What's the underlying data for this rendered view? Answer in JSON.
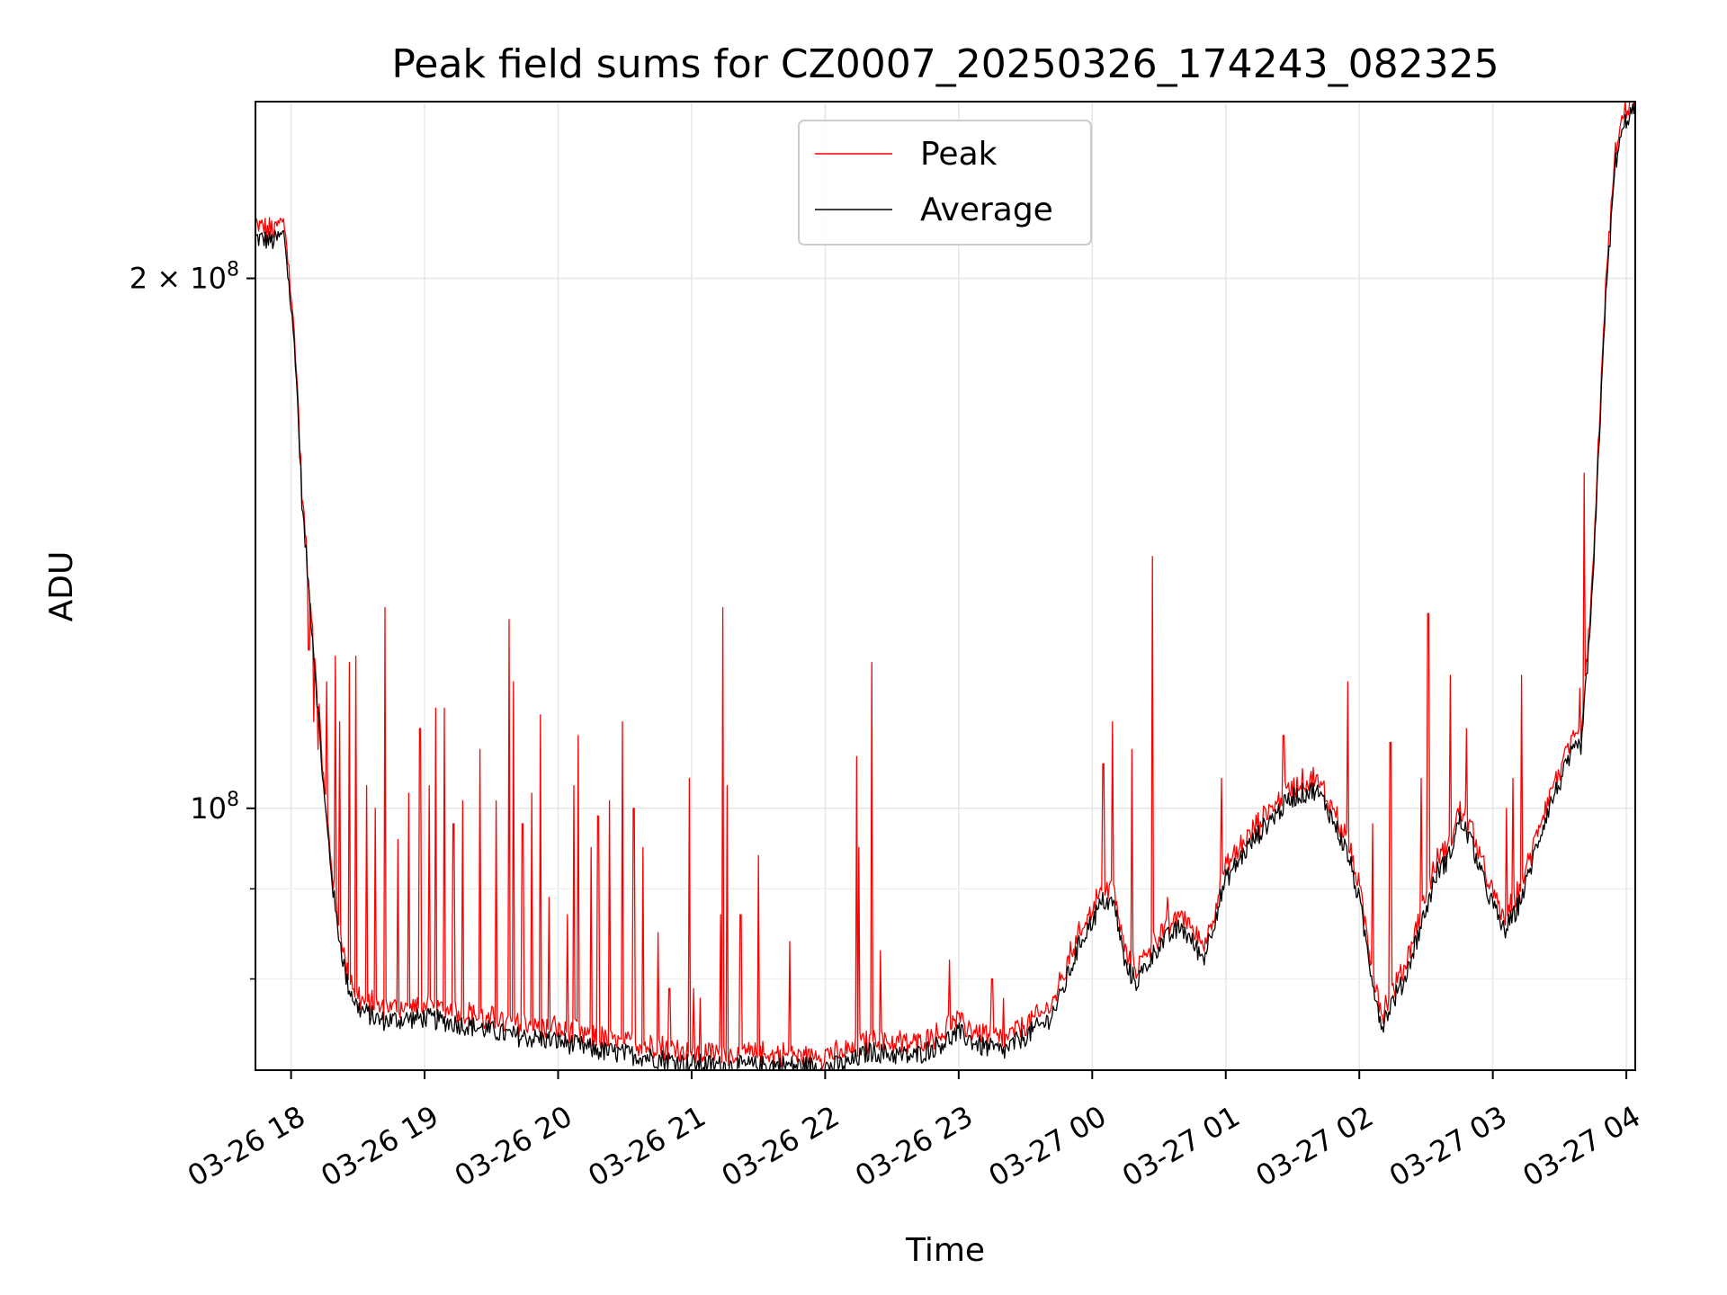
{
  "chart_data": {
    "type": "line",
    "title": "Peak field sums for CZ0007_20250326_174243_082325",
    "xlabel": "Time",
    "ylabel": "ADU",
    "yscale": "log",
    "xlim": [
      "2025-03-26 17:44",
      "2025-03-27 04:04"
    ],
    "ylim": [
      71000000,
      252000000
    ],
    "xticks": [
      {
        "t": "2025-03-26 18:00",
        "label": "03-26 18"
      },
      {
        "t": "2025-03-26 19:00",
        "label": "03-26 19"
      },
      {
        "t": "2025-03-26 20:00",
        "label": "03-26 20"
      },
      {
        "t": "2025-03-26 21:00",
        "label": "03-26 21"
      },
      {
        "t": "2025-03-26 22:00",
        "label": "03-26 22"
      },
      {
        "t": "2025-03-26 23:00",
        "label": "03-26 23"
      },
      {
        "t": "2025-03-27 00:00",
        "label": "03-27 00"
      },
      {
        "t": "2025-03-27 01:00",
        "label": "03-27 01"
      },
      {
        "t": "2025-03-27 02:00",
        "label": "03-27 02"
      },
      {
        "t": "2025-03-27 03:00",
        "label": "03-27 03"
      },
      {
        "t": "2025-03-27 04:00",
        "label": "03-27 04"
      }
    ],
    "yticks_major": [
      {
        "value": 100000000,
        "base": "10",
        "exp": "8",
        "mult": ""
      },
      {
        "value": 200000000,
        "base": "10",
        "exp": "8",
        "mult": "2 × "
      }
    ],
    "yticks_minor": [
      80000000,
      90000000
    ],
    "grid": true,
    "legend_position": "top-center",
    "series": [
      {
        "name": "Peak",
        "color": "#ff0000",
        "baseline": [
          [
            "2025-03-26 17:44",
            213000000
          ],
          [
            "2025-03-26 17:52",
            212000000
          ],
          [
            "2025-03-26 17:57",
            214000000
          ],
          [
            "2025-03-26 18:02",
            182000000
          ],
          [
            "2025-03-26 18:05",
            150000000
          ],
          [
            "2025-03-26 18:10",
            125000000
          ],
          [
            "2025-03-26 18:15",
            102000000
          ],
          [
            "2025-03-26 18:20",
            88000000
          ],
          [
            "2025-03-26 18:25",
            80500000
          ],
          [
            "2025-03-26 18:30",
            77800000
          ],
          [
            "2025-03-26 18:40",
            76500000
          ],
          [
            "2025-03-26 19:00",
            76800000
          ],
          [
            "2025-03-26 19:20",
            76000000
          ],
          [
            "2025-03-26 19:40",
            75000000
          ],
          [
            "2025-03-26 20:00",
            74500000
          ],
          [
            "2025-03-26 20:20",
            73500000
          ],
          [
            "2025-03-26 20:40",
            73000000
          ],
          [
            "2025-03-26 21:00",
            72300000
          ],
          [
            "2025-03-26 21:20",
            72100000
          ],
          [
            "2025-03-26 21:40",
            72200000
          ],
          [
            "2025-03-26 22:00",
            72000000
          ],
          [
            "2025-03-26 22:10",
            72300000
          ],
          [
            "2025-03-26 22:20",
            73500000
          ],
          [
            "2025-03-26 22:30",
            73200000
          ],
          [
            "2025-03-26 22:40",
            73000000
          ],
          [
            "2025-03-26 22:50",
            74000000
          ],
          [
            "2025-03-26 23:00",
            75300000
          ],
          [
            "2025-03-26 23:10",
            74000000
          ],
          [
            "2025-03-26 23:20",
            73500000
          ],
          [
            "2025-03-26 23:30",
            75000000
          ],
          [
            "2025-03-26 23:40",
            76500000
          ],
          [
            "2025-03-26 23:45",
            78500000
          ],
          [
            "2025-03-26 23:55",
            85000000
          ],
          [
            "2025-03-27 00:05",
            89500000
          ],
          [
            "2025-03-27 00:10",
            89000000
          ],
          [
            "2025-03-27 00:15",
            82000000
          ],
          [
            "2025-03-27 00:20",
            80500000
          ],
          [
            "2025-03-27 00:30",
            84500000
          ],
          [
            "2025-03-27 00:40",
            86500000
          ],
          [
            "2025-03-27 00:50",
            83000000
          ],
          [
            "2025-03-27 01:00",
            92000000
          ],
          [
            "2025-03-27 01:10",
            96000000
          ],
          [
            "2025-03-27 01:20",
            99500000
          ],
          [
            "2025-03-27 01:30",
            102500000
          ],
          [
            "2025-03-27 01:40",
            103500000
          ],
          [
            "2025-03-27 01:45",
            101500000
          ],
          [
            "2025-03-27 01:55",
            95000000
          ],
          [
            "2025-03-27 02:00",
            89500000
          ],
          [
            "2025-03-27 02:05",
            82000000
          ],
          [
            "2025-03-27 02:10",
            76000000
          ],
          [
            "2025-03-27 02:15",
            78500000
          ],
          [
            "2025-03-27 02:20",
            80500000
          ],
          [
            "2025-03-27 02:25",
            84500000
          ],
          [
            "2025-03-27 02:30",
            88500000
          ],
          [
            "2025-03-27 02:35",
            93000000
          ],
          [
            "2025-03-27 02:40",
            94500000
          ],
          [
            "2025-03-27 02:45",
            99500000
          ],
          [
            "2025-03-27 02:50",
            97000000
          ],
          [
            "2025-03-27 02:55",
            92500000
          ],
          [
            "2025-03-27 03:00",
            89000000
          ],
          [
            "2025-03-27 03:05",
            86000000
          ],
          [
            "2025-03-27 03:10",
            88000000
          ],
          [
            "2025-03-27 03:15",
            91500000
          ],
          [
            "2025-03-27 03:20",
            96500000
          ],
          [
            "2025-03-27 03:25",
            101000000
          ],
          [
            "2025-03-27 03:35",
            108000000
          ],
          [
            "2025-03-27 03:40",
            110000000
          ],
          [
            "2025-03-27 03:45",
            135000000
          ],
          [
            "2025-03-27 03:50",
            190000000
          ],
          [
            "2025-03-27 03:55",
            235000000
          ],
          [
            "2025-03-27 04:00",
            249000000
          ],
          [
            "2025-03-27 04:04",
            252000000
          ]
        ],
        "spikes": [
          [
            "2025-03-26 18:08",
            123000000
          ],
          [
            "2025-03-26 18:10",
            112000000
          ],
          [
            "2025-03-26 18:12",
            108000000
          ],
          [
            "2025-03-26 18:14",
            105000000
          ],
          [
            "2025-03-26 18:16",
            118000000
          ],
          [
            "2025-03-26 18:20",
            122000000
          ],
          [
            "2025-03-26 18:22",
            112000000
          ],
          [
            "2025-03-26 18:26",
            121000000
          ],
          [
            "2025-03-26 18:29",
            122000000
          ],
          [
            "2025-03-26 18:34",
            103000000
          ],
          [
            "2025-03-26 18:38",
            100000000
          ],
          [
            "2025-03-26 18:42",
            130000000
          ],
          [
            "2025-03-26 18:48",
            96000000
          ],
          [
            "2025-03-26 18:53",
            102000000
          ],
          [
            "2025-03-26 18:58",
            111000000
          ],
          [
            "2025-03-26 19:02",
            103000000
          ],
          [
            "2025-03-26 19:05",
            114000000
          ],
          [
            "2025-03-26 19:09",
            114000000
          ],
          [
            "2025-03-26 19:13",
            98000000
          ],
          [
            "2025-03-26 19:17",
            101000000
          ],
          [
            "2025-03-26 19:25",
            108000000
          ],
          [
            "2025-03-26 19:32",
            101000000
          ],
          [
            "2025-03-26 19:38",
            128000000
          ],
          [
            "2025-03-26 19:40",
            118000000
          ],
          [
            "2025-03-26 19:44",
            98000000
          ],
          [
            "2025-03-26 19:48",
            102000000
          ],
          [
            "2025-03-26 19:52",
            113000000
          ],
          [
            "2025-03-26 19:56",
            89000000
          ],
          [
            "2025-03-26 20:04",
            87000000
          ],
          [
            "2025-03-26 20:07",
            103000000
          ],
          [
            "2025-03-26 20:09",
            110000000
          ],
          [
            "2025-03-26 20:15",
            95000000
          ],
          [
            "2025-03-26 20:18",
            99000000
          ],
          [
            "2025-03-26 20:23",
            101000000
          ],
          [
            "2025-03-26 20:29",
            112000000
          ],
          [
            "2025-03-26 20:34",
            100000000
          ],
          [
            "2025-03-26 20:38",
            95000000
          ],
          [
            "2025-03-26 20:45",
            85000000
          ],
          [
            "2025-03-26 20:50",
            79000000
          ],
          [
            "2025-03-26 20:59",
            104000000
          ],
          [
            "2025-03-26 21:01",
            79000000
          ],
          [
            "2025-03-26 21:04",
            78000000
          ],
          [
            "2025-03-26 21:13",
            87000000
          ],
          [
            "2025-03-26 21:14",
            130000000
          ],
          [
            "2025-03-26 21:16",
            103000000
          ],
          [
            "2025-03-26 21:22",
            87000000
          ],
          [
            "2025-03-26 21:30",
            94000000
          ],
          [
            "2025-03-26 21:44",
            84000000
          ],
          [
            "2025-03-26 22:14",
            107000000
          ],
          [
            "2025-03-26 22:15",
            95000000
          ],
          [
            "2025-03-26 22:21",
            121000000
          ],
          [
            "2025-03-26 22:25",
            83000000
          ],
          [
            "2025-03-26 22:56",
            82000000
          ],
          [
            "2025-03-26 23:15",
            80000000
          ],
          [
            "2025-03-26 23:20",
            78000000
          ],
          [
            "2025-03-26 23:50",
            84000000
          ],
          [
            "2025-03-27 00:05",
            106000000
          ],
          [
            "2025-03-27 00:09",
            112000000
          ],
          [
            "2025-03-27 00:18",
            108000000
          ],
          [
            "2025-03-27 00:27",
            139000000
          ],
          [
            "2025-03-27 00:34",
            89000000
          ],
          [
            "2025-03-27 00:58",
            104000000
          ],
          [
            "2025-03-27 01:26",
            110000000
          ],
          [
            "2025-03-27 01:45",
            101000000
          ],
          [
            "2025-03-27 01:55",
            118000000
          ],
          [
            "2025-03-27 02:06",
            98000000
          ],
          [
            "2025-03-27 02:14",
            109000000
          ],
          [
            "2025-03-27 02:28",
            104000000
          ],
          [
            "2025-03-27 02:31",
            129000000
          ],
          [
            "2025-03-27 02:41",
            119000000
          ],
          [
            "2025-03-27 02:48",
            111000000
          ],
          [
            "2025-03-27 03:06",
            100000000
          ],
          [
            "2025-03-27 03:09",
            104000000
          ],
          [
            "2025-03-27 03:13",
            119000000
          ],
          [
            "2025-03-27 03:39",
            117000000
          ],
          [
            "2025-03-27 03:41",
            155000000
          ]
        ]
      },
      {
        "name": "Average",
        "color": "#000000",
        "offset_ratio": 0.99
      }
    ]
  }
}
